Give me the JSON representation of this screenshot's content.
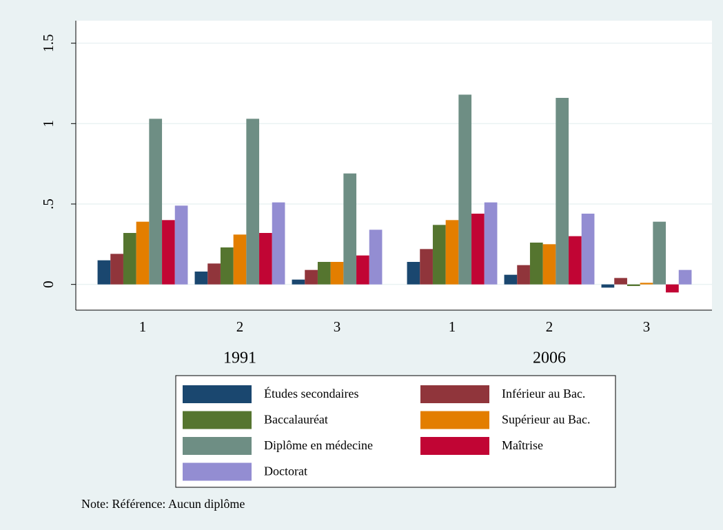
{
  "chart_data": {
    "type": "bar",
    "categories": [
      "1",
      "2",
      "3",
      "1",
      "2",
      "3"
    ],
    "group_labels": [
      "1991",
      "2006"
    ],
    "series": [
      {
        "name": "Études secondaires",
        "color": "#1a476f",
        "values": [
          0.15,
          0.08,
          0.03,
          0.14,
          0.06,
          -0.02
        ]
      },
      {
        "name": "Inférieur au Bac.",
        "color": "#90353b",
        "values": [
          0.19,
          0.13,
          0.09,
          0.22,
          0.12,
          0.04
        ]
      },
      {
        "name": "Baccalauréat",
        "color": "#55752f",
        "values": [
          0.32,
          0.23,
          0.14,
          0.37,
          0.26,
          -0.01
        ]
      },
      {
        "name": "Supérieur au Bac.",
        "color": "#e37e00",
        "values": [
          0.39,
          0.31,
          0.14,
          0.4,
          0.25,
          0.01
        ]
      },
      {
        "name": "Diplôme en médecine",
        "color": "#6e8e84",
        "values": [
          1.03,
          1.03,
          0.69,
          1.18,
          1.16,
          0.39
        ]
      },
      {
        "name": "Maîtrise",
        "color": "#c10534",
        "values": [
          0.4,
          0.32,
          0.18,
          0.44,
          0.3,
          -0.05
        ]
      },
      {
        "name": "Doctorat",
        "color": "#938dd2",
        "values": [
          0.49,
          0.51,
          0.34,
          0.51,
          0.44,
          0.09
        ]
      }
    ],
    "ylim": [
      -0.16,
      1.64
    ],
    "yticks": [
      0,
      {
        "value": 0.5,
        "label": ".5"
      },
      1,
      1.5
    ],
    "grid": true,
    "note": "Note: Référence: Aucun diplôme"
  }
}
